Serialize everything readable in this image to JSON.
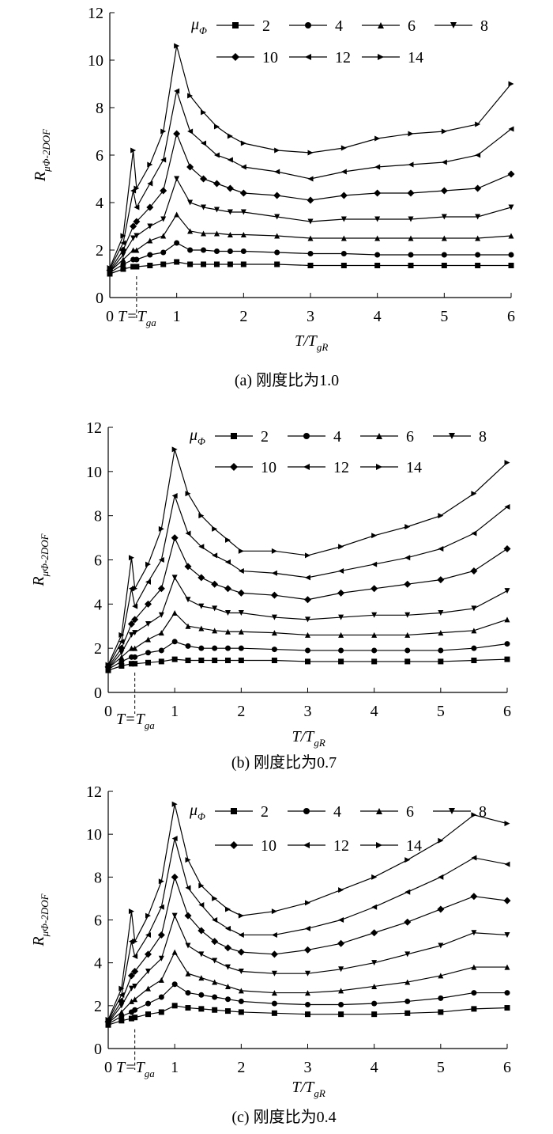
{
  "chart_data": [
    {
      "type": "line",
      "caption": "(a) 刚度比为1.0",
      "x_label": "T/T",
      "x_label_sub": "gR",
      "y_label": "R",
      "y_label_sub": "μΦ-2DOF",
      "legend_title": "μ",
      "legend_title_sub": "Φ",
      "annotation": "T=T",
      "annotation_sub": "ga",
      "annotation_x": 0.4,
      "xlim": [
        0,
        6
      ],
      "ylim": [
        0,
        12
      ],
      "xticks": [
        0,
        1,
        2,
        3,
        4,
        5,
        6
      ],
      "yticks": [
        0,
        2,
        4,
        6,
        8,
        10,
        12
      ],
      "grid": false,
      "x": [
        0,
        0.2,
        0.35,
        0.4,
        0.6,
        0.8,
        1.0,
        1.2,
        1.4,
        1.6,
        1.8,
        2.0,
        2.5,
        3.0,
        3.5,
        4.0,
        4.5,
        5.0,
        5.5,
        6.0
      ],
      "series": [
        {
          "name": "2",
          "color": "#000",
          "marker": "square",
          "values": [
            1.0,
            1.2,
            1.3,
            1.3,
            1.35,
            1.4,
            1.5,
            1.4,
            1.4,
            1.4,
            1.4,
            1.4,
            1.4,
            1.35,
            1.35,
            1.35,
            1.35,
            1.35,
            1.35,
            1.35
          ]
        },
        {
          "name": "4",
          "color": "#000",
          "marker": "circle",
          "values": [
            1.05,
            1.4,
            1.6,
            1.6,
            1.8,
            1.9,
            2.3,
            2.0,
            2.0,
            1.95,
            1.95,
            1.95,
            1.9,
            1.85,
            1.85,
            1.8,
            1.8,
            1.8,
            1.8,
            1.8
          ]
        },
        {
          "name": "6",
          "color": "#000",
          "marker": "triangle-up",
          "values": [
            1.1,
            1.6,
            2.0,
            2.0,
            2.4,
            2.6,
            3.5,
            2.8,
            2.7,
            2.7,
            2.65,
            2.65,
            2.6,
            2.5,
            2.5,
            2.5,
            2.5,
            2.5,
            2.5,
            2.6
          ]
        },
        {
          "name": "8",
          "color": "#000",
          "marker": "triangle-down",
          "values": [
            1.1,
            1.8,
            2.5,
            2.6,
            3.0,
            3.3,
            5.0,
            4.0,
            3.8,
            3.7,
            3.6,
            3.6,
            3.4,
            3.2,
            3.3,
            3.3,
            3.3,
            3.4,
            3.4,
            3.8
          ]
        },
        {
          "name": "10",
          "color": "#000",
          "marker": "diamond",
          "values": [
            1.15,
            2.0,
            3.0,
            3.2,
            3.8,
            4.5,
            6.9,
            5.5,
            5.0,
            4.8,
            4.6,
            4.4,
            4.3,
            4.1,
            4.3,
            4.4,
            4.4,
            4.5,
            4.6,
            5.2
          ]
        },
        {
          "name": "12",
          "color": "#000",
          "marker": "triangle-left",
          "values": [
            1.2,
            2.3,
            4.5,
            3.8,
            4.8,
            5.8,
            8.7,
            7.0,
            6.5,
            6.0,
            5.8,
            5.5,
            5.3,
            5.0,
            5.3,
            5.5,
            5.6,
            5.7,
            6.0,
            7.1
          ]
        },
        {
          "name": "14",
          "color": "#000",
          "marker": "triangle-right",
          "values": [
            1.25,
            2.6,
            6.2,
            4.6,
            5.6,
            7.0,
            10.6,
            8.5,
            7.8,
            7.2,
            6.8,
            6.5,
            6.2,
            6.1,
            6.3,
            6.7,
            6.9,
            7.0,
            7.3,
            9.0
          ]
        }
      ]
    },
    {
      "type": "line",
      "caption": "(b) 刚度比为0.7",
      "x_label": "T/T",
      "x_label_sub": "gR",
      "y_label": "R",
      "y_label_sub": "μΦ-2DOF",
      "legend_title": "μ",
      "legend_title_sub": "Φ",
      "annotation": "T=T",
      "annotation_sub": "ga",
      "annotation_x": 0.4,
      "xlim": [
        0,
        6
      ],
      "ylim": [
        0,
        12
      ],
      "xticks": [
        0,
        1,
        2,
        3,
        4,
        5,
        6
      ],
      "yticks": [
        0,
        2,
        4,
        6,
        8,
        10,
        12
      ],
      "grid": false,
      "x": [
        0,
        0.2,
        0.35,
        0.4,
        0.6,
        0.8,
        1.0,
        1.2,
        1.4,
        1.6,
        1.8,
        2.0,
        2.5,
        3.0,
        3.5,
        4.0,
        4.5,
        5.0,
        5.5,
        6.0
      ],
      "series": [
        {
          "name": "2",
          "color": "#000",
          "marker": "square",
          "values": [
            1.0,
            1.2,
            1.3,
            1.3,
            1.35,
            1.4,
            1.5,
            1.45,
            1.45,
            1.45,
            1.45,
            1.45,
            1.45,
            1.4,
            1.4,
            1.4,
            1.4,
            1.4,
            1.45,
            1.5
          ]
        },
        {
          "name": "4",
          "color": "#000",
          "marker": "circle",
          "values": [
            1.05,
            1.4,
            1.6,
            1.6,
            1.8,
            1.9,
            2.3,
            2.1,
            2.0,
            2.0,
            2.0,
            2.0,
            1.95,
            1.9,
            1.9,
            1.9,
            1.9,
            1.9,
            2.0,
            2.2
          ]
        },
        {
          "name": "6",
          "color": "#000",
          "marker": "triangle-up",
          "values": [
            1.1,
            1.6,
            2.0,
            2.0,
            2.4,
            2.7,
            3.6,
            3.0,
            2.9,
            2.8,
            2.75,
            2.75,
            2.7,
            2.6,
            2.6,
            2.6,
            2.6,
            2.7,
            2.8,
            3.3
          ]
        },
        {
          "name": "8",
          "color": "#000",
          "marker": "triangle-down",
          "values": [
            1.1,
            1.8,
            2.6,
            2.7,
            3.1,
            3.5,
            5.2,
            4.2,
            3.9,
            3.8,
            3.6,
            3.6,
            3.4,
            3.3,
            3.4,
            3.5,
            3.5,
            3.6,
            3.8,
            4.6
          ]
        },
        {
          "name": "10",
          "color": "#000",
          "marker": "diamond",
          "values": [
            1.15,
            2.0,
            3.1,
            3.3,
            4.0,
            4.7,
            7.0,
            5.7,
            5.2,
            4.9,
            4.7,
            4.5,
            4.4,
            4.2,
            4.5,
            4.7,
            4.9,
            5.1,
            5.5,
            6.5
          ]
        },
        {
          "name": "12",
          "color": "#000",
          "marker": "triangle-left",
          "values": [
            1.2,
            2.3,
            4.7,
            3.9,
            5.0,
            6.0,
            8.9,
            7.2,
            6.6,
            6.2,
            5.9,
            5.5,
            5.4,
            5.2,
            5.5,
            5.8,
            6.1,
            6.5,
            7.2,
            8.4
          ]
        },
        {
          "name": "14",
          "color": "#000",
          "marker": "triangle-right",
          "values": [
            1.25,
            2.6,
            6.1,
            4.7,
            5.8,
            7.4,
            11.0,
            9.0,
            8.0,
            7.4,
            6.9,
            6.4,
            6.4,
            6.2,
            6.6,
            7.1,
            7.5,
            8.0,
            9.0,
            10.4
          ]
        }
      ]
    },
    {
      "type": "line",
      "caption": "(c) 刚度比为0.4",
      "x_label": "T/T",
      "x_label_sub": "gR",
      "y_label": "R",
      "y_label_sub": "μΦ-2DOF",
      "legend_title": "μ",
      "legend_title_sub": "Φ",
      "annotation": "T=T",
      "annotation_sub": "ga",
      "annotation_x": 0.4,
      "xlim": [
        0,
        6
      ],
      "ylim": [
        0,
        12
      ],
      "xticks": [
        0,
        1,
        2,
        3,
        4,
        5,
        6
      ],
      "yticks": [
        0,
        2,
        4,
        6,
        8,
        10,
        12
      ],
      "grid": false,
      "x": [
        0,
        0.2,
        0.35,
        0.4,
        0.6,
        0.8,
        1.0,
        1.2,
        1.4,
        1.6,
        1.8,
        2.0,
        2.5,
        3.0,
        3.5,
        4.0,
        4.5,
        5.0,
        5.5,
        6.0
      ],
      "series": [
        {
          "name": "2",
          "color": "#000",
          "marker": "square",
          "values": [
            1.1,
            1.3,
            1.4,
            1.45,
            1.6,
            1.7,
            2.0,
            1.9,
            1.85,
            1.8,
            1.75,
            1.7,
            1.65,
            1.6,
            1.6,
            1.6,
            1.65,
            1.7,
            1.85,
            1.9
          ]
        },
        {
          "name": "4",
          "color": "#000",
          "marker": "circle",
          "values": [
            1.15,
            1.5,
            1.7,
            1.8,
            2.1,
            2.4,
            3.0,
            2.6,
            2.5,
            2.4,
            2.3,
            2.2,
            2.1,
            2.05,
            2.05,
            2.1,
            2.2,
            2.35,
            2.6,
            2.6
          ]
        },
        {
          "name": "6",
          "color": "#000",
          "marker": "triangle-up",
          "values": [
            1.2,
            1.7,
            2.2,
            2.3,
            2.8,
            3.2,
            4.5,
            3.5,
            3.3,
            3.1,
            2.9,
            2.7,
            2.6,
            2.6,
            2.7,
            2.9,
            3.1,
            3.4,
            3.8,
            3.8
          ]
        },
        {
          "name": "8",
          "color": "#000",
          "marker": "triangle-down",
          "values": [
            1.2,
            2.0,
            2.8,
            2.9,
            3.6,
            4.2,
            6.2,
            4.8,
            4.4,
            4.1,
            3.8,
            3.6,
            3.5,
            3.5,
            3.7,
            4.0,
            4.4,
            4.8,
            5.4,
            5.3
          ]
        },
        {
          "name": "10",
          "color": "#000",
          "marker": "diamond",
          "values": [
            1.25,
            2.2,
            3.4,
            3.6,
            4.4,
            5.3,
            8.0,
            6.2,
            5.5,
            5.0,
            4.7,
            4.5,
            4.4,
            4.6,
            4.9,
            5.4,
            5.9,
            6.5,
            7.1,
            6.9
          ]
        },
        {
          "name": "12",
          "color": "#000",
          "marker": "triangle-left",
          "values": [
            1.3,
            2.5,
            5.0,
            4.3,
            5.3,
            6.6,
            9.8,
            7.5,
            6.7,
            6.0,
            5.6,
            5.3,
            5.3,
            5.6,
            6.0,
            6.6,
            7.3,
            8.0,
            8.9,
            8.6
          ]
        },
        {
          "name": "14",
          "color": "#000",
          "marker": "triangle-right",
          "values": [
            1.35,
            2.8,
            6.4,
            5.0,
            6.2,
            7.8,
            11.4,
            8.8,
            7.6,
            7.0,
            6.5,
            6.2,
            6.4,
            6.8,
            7.4,
            8.0,
            8.8,
            9.7,
            10.9,
            10.5
          ]
        }
      ]
    }
  ]
}
